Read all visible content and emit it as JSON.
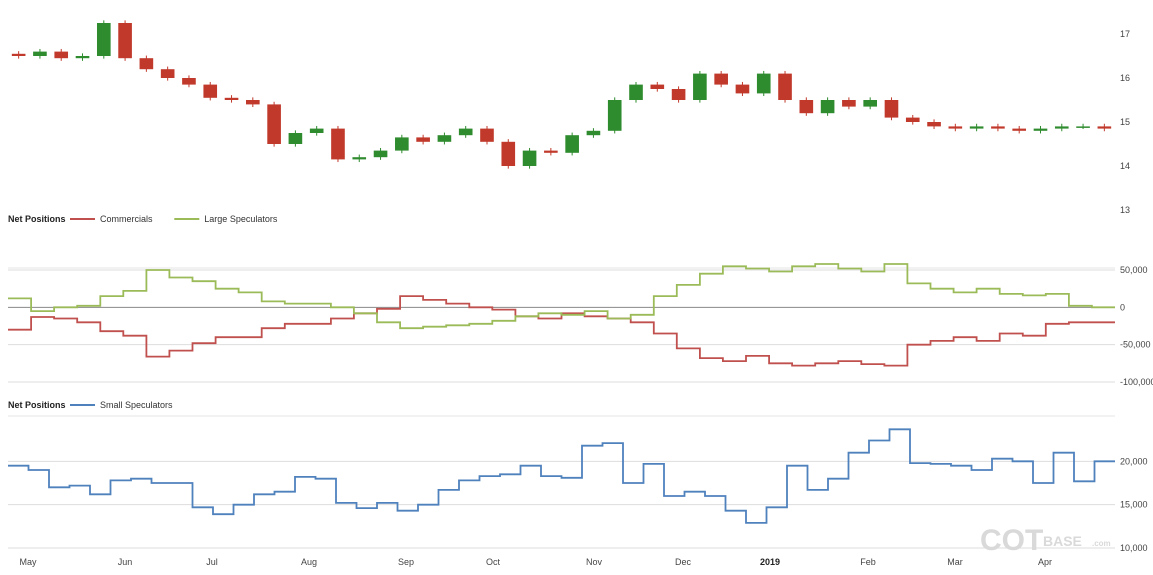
{
  "chart_data": [
    {
      "type": "candlestick",
      "panel": "price",
      "y_ticks": [
        "17",
        "16",
        "15",
        "14",
        "13"
      ],
      "ylim": [
        13,
        17.5
      ],
      "colors": {
        "up": "#2e8b2e",
        "down": "#c0392b"
      },
      "x": [
        0,
        1,
        2,
        3,
        4,
        5,
        6,
        7,
        8,
        9,
        10,
        11,
        12,
        13,
        14,
        15,
        16,
        17,
        18,
        19,
        20,
        21,
        22,
        23,
        24,
        25,
        26,
        27,
        28,
        29,
        30,
        31,
        32,
        33,
        34,
        35,
        36,
        37,
        38,
        39,
        40,
        41,
        42,
        43,
        44,
        45,
        46,
        47,
        48,
        49,
        50,
        51
      ],
      "open": [
        16.55,
        16.5,
        16.6,
        16.45,
        16.5,
        17.25,
        16.45,
        16.2,
        16.0,
        15.85,
        15.55,
        15.5,
        15.4,
        14.5,
        14.75,
        14.85,
        14.15,
        14.2,
        14.35,
        14.65,
        14.55,
        14.7,
        14.85,
        14.55,
        14.0,
        14.35,
        14.3,
        14.7,
        14.8,
        15.5,
        15.85,
        15.75,
        15.5,
        16.1,
        15.85,
        15.65,
        16.1,
        15.5,
        15.2,
        15.5,
        15.35,
        15.5,
        15.1,
        15.0,
        14.9,
        14.85,
        14.9,
        14.85,
        14.8,
        14.85,
        14.9,
        14.9
      ],
      "close": [
        16.5,
        16.6,
        16.45,
        16.5,
        17.25,
        16.45,
        16.2,
        16.0,
        15.85,
        15.55,
        15.5,
        15.4,
        14.5,
        14.75,
        14.85,
        14.15,
        14.2,
        14.35,
        14.65,
        14.55,
        14.7,
        14.85,
        14.55,
        14.0,
        14.35,
        14.3,
        14.7,
        14.8,
        15.5,
        15.85,
        15.75,
        15.5,
        16.1,
        15.85,
        15.65,
        16.1,
        15.5,
        15.2,
        15.5,
        15.35,
        15.5,
        15.1,
        15.0,
        14.9,
        14.85,
        14.9,
        14.85,
        14.8,
        14.85,
        14.9,
        14.9,
        14.85
      ]
    },
    {
      "type": "line",
      "panel": "net-positions-1",
      "legend_title": "Net Positions",
      "y_ticks": [
        "50,000",
        "0",
        "-50,000",
        "-100,000"
      ],
      "ylim": [
        -100000,
        50000
      ],
      "series": [
        {
          "name": "Commercials",
          "color": "#c0504d",
          "values": [
            -30000,
            -13000,
            -15000,
            -20000,
            -32000,
            -38000,
            -66000,
            -58000,
            -48000,
            -40000,
            -40000,
            -28000,
            -22000,
            -22000,
            -15000,
            -8000,
            -2000,
            15000,
            10000,
            5000,
            0,
            -3000,
            -12000,
            -15000,
            -8000,
            -12000,
            -15000,
            -20000,
            -35000,
            -55000,
            -68000,
            -72000,
            -65000,
            -75000,
            -78000,
            -75000,
            -72000,
            -76000,
            -78000,
            -50000,
            -45000,
            -40000,
            -45000,
            -35000,
            -38000,
            -22000,
            -20000,
            -20000
          ]
        },
        {
          "name": "Large Speculators",
          "color": "#9bbb59",
          "values": [
            12000,
            -5000,
            0,
            2000,
            15000,
            22000,
            50000,
            40000,
            35000,
            25000,
            20000,
            8000,
            5000,
            5000,
            0,
            -8000,
            -20000,
            -28000,
            -26000,
            -24000,
            -22000,
            -18000,
            -12000,
            -8000,
            -10000,
            -5000,
            -15000,
            -10000,
            15000,
            30000,
            45000,
            55000,
            52000,
            48000,
            55000,
            58000,
            52000,
            48000,
            58000,
            32000,
            25000,
            20000,
            25000,
            18000,
            16000,
            18000,
            2000,
            0
          ]
        }
      ]
    },
    {
      "type": "line",
      "panel": "net-positions-2",
      "legend_title": "Net Positions",
      "y_ticks": [
        "20,000",
        "15,000",
        "10,000"
      ],
      "ylim": [
        10000,
        25000
      ],
      "series": [
        {
          "name": "Small Speculators",
          "color": "#4f81bd",
          "values": [
            19500,
            19000,
            17000,
            17200,
            16200,
            17800,
            18000,
            17500,
            17500,
            14700,
            13900,
            15000,
            16200,
            16500,
            18200,
            18000,
            15200,
            14600,
            15200,
            14300,
            15000,
            16700,
            17800,
            18300,
            18500,
            19500,
            18300,
            18100,
            21800,
            22100,
            17500,
            19700,
            16000,
            16500,
            16000,
            14300,
            12900,
            14700,
            19500,
            16700,
            18000,
            21000,
            22400,
            23700,
            19800,
            19700,
            19500,
            19000,
            20300,
            20000,
            17500,
            21000,
            17700,
            20000
          ]
        }
      ]
    }
  ],
  "x_axis": {
    "labels": [
      "May",
      "Jun",
      "Jul",
      "Aug",
      "Sep",
      "Oct",
      "Nov",
      "Dec",
      "2019",
      "Feb",
      "Mar",
      "Apr"
    ],
    "bold_label": "2019"
  },
  "watermark": {
    "main": "COT",
    "sub": "BASE",
    "suffix": ".com"
  }
}
